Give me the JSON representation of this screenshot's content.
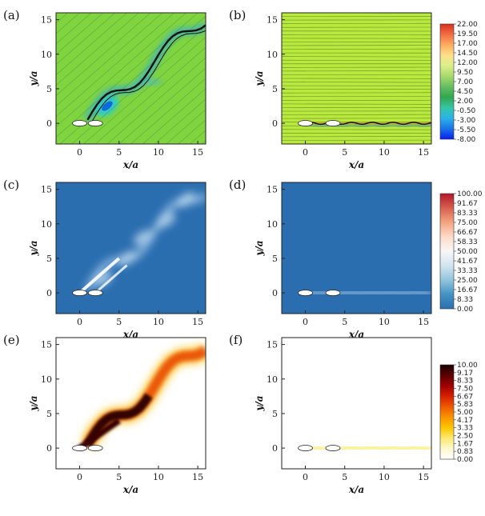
{
  "chart_data": [
    {
      "panel": "(a)",
      "type": "heatmap",
      "xlabel": "x/a",
      "ylabel": "y/a",
      "xlim": [
        -3,
        16
      ],
      "ylim": [
        -3,
        16
      ],
      "xticks": [
        "0",
        "5",
        "10",
        "15"
      ],
      "yticks": [
        "0",
        "5",
        "10",
        "15"
      ],
      "colorbar": "top",
      "pattern": "oblique-vorticity-streamlines"
    },
    {
      "panel": "(b)",
      "type": "heatmap",
      "xlabel": "x/a",
      "ylabel": "y/a",
      "xlim": [
        -3,
        16
      ],
      "ylim": [
        -3,
        16
      ],
      "xticks": [
        "0",
        "5",
        "10",
        "15"
      ],
      "yticks": [
        "0",
        "5",
        "10",
        "15"
      ],
      "colorbar": "top",
      "pattern": "horizontal-vorticity-streamlines"
    },
    {
      "panel": "(c)",
      "type": "heatmap",
      "xlabel": "x/a",
      "ylabel": "y/a",
      "xlim": [
        -3,
        16
      ],
      "ylim": [
        -3,
        16
      ],
      "xticks": [
        "0",
        "5",
        "10",
        "15"
      ],
      "yticks": [
        "0",
        "5",
        "10",
        "15"
      ],
      "colorbar": "middle",
      "pattern": "oblique-wake"
    },
    {
      "panel": "(d)",
      "type": "heatmap",
      "xlabel": "x/a",
      "ylabel": "y/a",
      "xlim": [
        -3,
        16
      ],
      "ylim": [
        -3,
        16
      ],
      "xticks": [
        "0",
        "5",
        "10",
        "15"
      ],
      "yticks": [
        "0",
        "5",
        "10",
        "15"
      ],
      "colorbar": "middle",
      "pattern": "horizontal-wake"
    },
    {
      "panel": "(e)",
      "type": "heatmap",
      "xlabel": "x/a",
      "ylabel": "y/a",
      "xlim": [
        -3,
        16
      ],
      "ylim": [
        -3,
        16
      ],
      "xticks": [
        "0",
        "5",
        "10",
        "15"
      ],
      "yticks": [
        "0",
        "5",
        "10",
        "15"
      ],
      "colorbar": "bottom",
      "pattern": "oblique-wake"
    },
    {
      "panel": "(f)",
      "type": "heatmap",
      "xlabel": "x/a",
      "ylabel": "y/a",
      "xlim": [
        -3,
        16
      ],
      "ylim": [
        -3,
        16
      ],
      "xticks": [
        "0",
        "5",
        "10",
        "15"
      ],
      "yticks": [
        "0",
        "5",
        "10",
        "15"
      ],
      "colorbar": "bottom",
      "pattern": "horizontal-wake"
    }
  ],
  "colorbars": {
    "top": {
      "labels": [
        "22.00",
        "19.50",
        "17.00",
        "14.50",
        "12.00",
        "9.50",
        "7.00",
        "4.50",
        "2.00",
        "-0.50",
        "-3.00",
        "-5.50",
        "-8.00"
      ],
      "stops": [
        "#d7301f",
        "#f46d43",
        "#fdae61",
        "#fee08b",
        "#d9ef8b",
        "#a6d96a",
        "#66bd63",
        "#2fa84f",
        "#35c6a8",
        "#2bb3e8",
        "#1a73e8",
        "#0a1ff0"
      ]
    },
    "middle": {
      "labels": [
        "100.00",
        "91.67",
        "83.33",
        "75.00",
        "66.67",
        "58.33",
        "50.00",
        "41.67",
        "33.33",
        "25.00",
        "16.67",
        "8.33",
        "0.00"
      ],
      "stops": [
        "#b2182b",
        "#d6604d",
        "#f4a582",
        "#fddbc7",
        "#f7f7f7",
        "#d1e5f0",
        "#92c5de",
        "#4393c3",
        "#2b6eb0"
      ]
    },
    "bottom": {
      "labels": [
        "10.00",
        "9.17",
        "8.33",
        "7.50",
        "6.67",
        "5.83",
        "5.00",
        "4.17",
        "3.33",
        "2.50",
        "1.67",
        "0.83",
        "0.00"
      ],
      "stops": [
        "#1a0000",
        "#5c0000",
        "#a00000",
        "#d62000",
        "#ee5a00",
        "#f99400",
        "#fcc600",
        "#feea70",
        "#fff8d0",
        "#ffffff"
      ]
    }
  },
  "colors": {
    "oblique_field": "#7fd43f",
    "horizontal_field": "#b9e93c",
    "wake_bg": "#2b6eb0"
  }
}
